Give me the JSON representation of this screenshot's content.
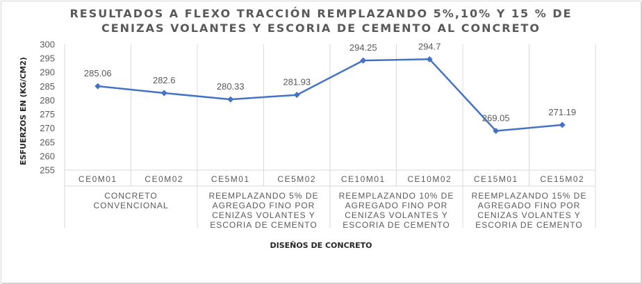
{
  "chart_data": {
    "type": "line",
    "title": "RESULTADOS A FLEXO TRACCIÓN REMPLAZANDO 5%,10% Y 15 % DE CENIZAS VOLANTES Y ESCORIA DE CEMENTO AL CONCRETO",
    "title_lines": [
      "RESULTADOS A FLEXO TRACCIÓN REMPLAZANDO 5%,10% Y 15 % DE",
      "CENIZAS VOLANTES Y ESCORIA DE CEMENTO AL CONCRETO"
    ],
    "xlabel": "DISEÑOS DE CONCRETO",
    "ylabel": "ESFUERZOS EN (KG/CM2)",
    "ylim": [
      255,
      300
    ],
    "yticks": [
      255,
      260,
      265,
      270,
      275,
      280,
      285,
      290,
      295,
      300
    ],
    "categories": [
      "CE0M01",
      "CE0M02",
      "CE5M01",
      "CE5M02",
      "CE10M01",
      "CE10M02",
      "CE15M01",
      "CE15M02"
    ],
    "groups": [
      {
        "lines": [
          "CONCRETO",
          "CONVENCIONAL"
        ],
        "span": 2
      },
      {
        "lines": [
          "REEMPLAZANDO 5% DE",
          "AGREGADO FINO POR",
          "CENIZAS VOLANTES Y",
          "ESCORIA DE CEMENTO"
        ],
        "span": 2
      },
      {
        "lines": [
          "REEMPLAZANDO 10% DE",
          "AGREGADO FINO POR",
          "CENIZAS VOLANTES Y",
          "ESCORIA DE CEMENTO"
        ],
        "span": 2
      },
      {
        "lines": [
          "REEMPLAZANDO 15% DE",
          "AGREGADO FINO POR",
          "CENIZAS VOLANTES Y",
          "ESCORIA DE CEMENTO"
        ],
        "span": 2
      }
    ],
    "series": [
      {
        "values": [
          285.06,
          282.6,
          280.33,
          281.93,
          294.25,
          294.7,
          269.05,
          271.19
        ],
        "labels": [
          "285.06",
          "282.6",
          "280.33",
          "281.93",
          "294.25",
          "294.7",
          "269.05",
          "271.19"
        ],
        "color": "#4472c4"
      }
    ],
    "grid": {
      "vertical": true,
      "horizontal": false
    },
    "colors": {
      "axis": "#d9d9d9",
      "text": "#595959",
      "line": "#4472c4"
    }
  }
}
